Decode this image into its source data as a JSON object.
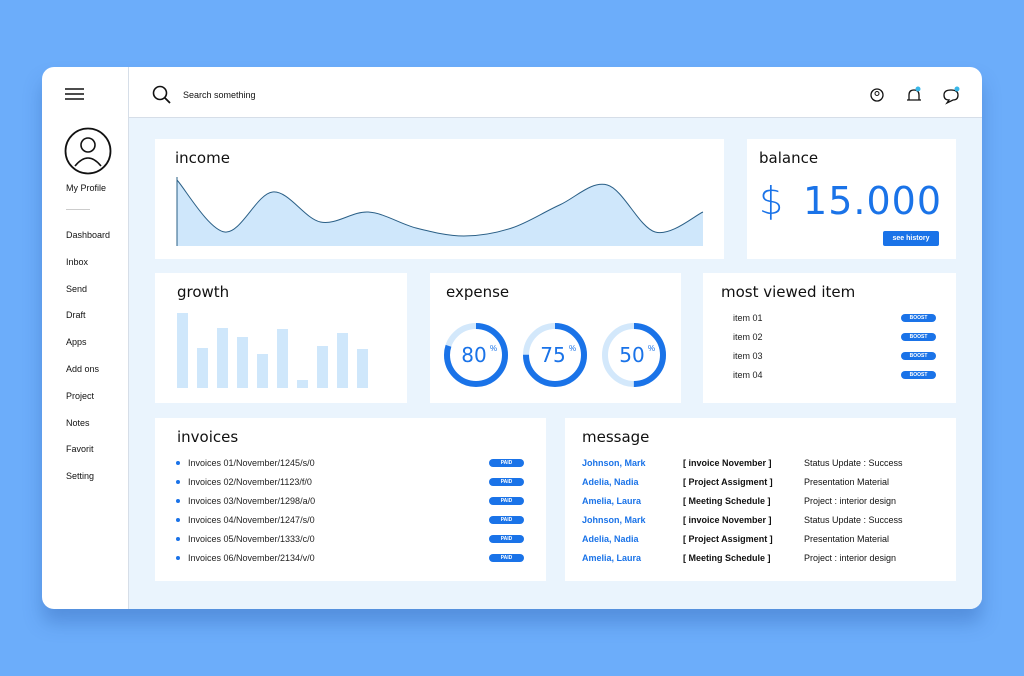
{
  "sidebar": {
    "profile": "My Profile",
    "menu": [
      "Dashboard",
      "Inbox",
      "Send",
      "Draft",
      "Apps",
      "Add ons",
      "Project",
      "Notes",
      "Favorit",
      "Setting"
    ]
  },
  "search": {
    "placeholder": "Search something"
  },
  "income": {
    "title": "income",
    "values": [
      66,
      14,
      54,
      24,
      34,
      18,
      10,
      18,
      41,
      61,
      14,
      34
    ]
  },
  "balance": {
    "title": "balance",
    "currency": "$",
    "amount": "15.000",
    "button": "see history"
  },
  "growth": {
    "title": "growth",
    "values": [
      75,
      40,
      60,
      51,
      34,
      59,
      8,
      42,
      55,
      39
    ]
  },
  "expense": {
    "title": "expense",
    "values": [
      80,
      75,
      50
    ],
    "unit": "%"
  },
  "most_viewed": {
    "title": "most viewed item",
    "items": [
      {
        "label": "item 01",
        "button": "BOOST"
      },
      {
        "label": "item 02",
        "button": "BOOST"
      },
      {
        "label": "item 03",
        "button": "BOOST"
      },
      {
        "label": "item 04",
        "button": "BOOST"
      }
    ]
  },
  "invoices": {
    "title": "invoices",
    "rows": [
      {
        "label": "Invoices 01/November/1245/s/0",
        "status": "PAID"
      },
      {
        "label": "Invoices 02/November/1123/f/0",
        "status": "PAID"
      },
      {
        "label": "Invoices 03/November/1298/a/0",
        "status": "PAID"
      },
      {
        "label": "Invoices 04/November/1247/s/0",
        "status": "PAID"
      },
      {
        "label": "Invoices 05/November/1333/c/0",
        "status": "PAID"
      },
      {
        "label": "Invoices 06/November/2134/v/0",
        "status": "PAID"
      }
    ]
  },
  "message": {
    "title": "message",
    "rows": [
      [
        "Johnson, Mark",
        "[ invoice November ]",
        "Status Update : Success"
      ],
      [
        "Adelia, Nadia",
        "[ Project Assigment ]",
        "Presentation Material"
      ],
      [
        "Amelia, Laura",
        "[ Meeting Schedule ]",
        "Project : interior design"
      ],
      [
        "Johnson, Mark",
        "[ invoice November ]",
        "Status Update : Success"
      ],
      [
        "Adelia, Nadia",
        "[ Project Assigment ]",
        "Presentation Material"
      ],
      [
        "Amelia, Laura",
        "[ Meeting Schedule ]",
        "Project : interior design"
      ]
    ]
  }
}
